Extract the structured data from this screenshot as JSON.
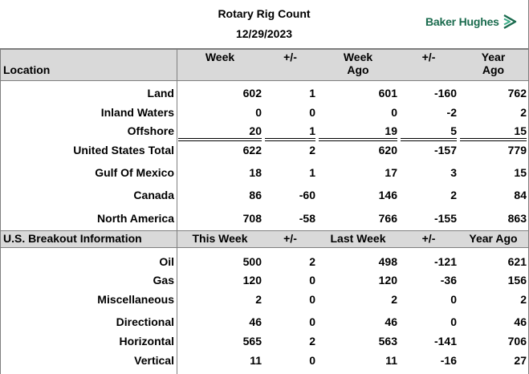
{
  "header": {
    "title": "Rotary Rig Count",
    "date": "12/29/2023",
    "logo_text": "Baker Hughes",
    "logo_color": "#1a6b4e",
    "logo_icon": "baker-hughes-chevron-icon"
  },
  "section1": {
    "headers": {
      "location": "Location",
      "week": "Week",
      "pm1": "+/-",
      "week_ago_1": "Week",
      "week_ago_2": "Ago",
      "pm2": "+/-",
      "year_ago_1": "Year",
      "year_ago_2": "Ago"
    },
    "rows": [
      {
        "label": "Land",
        "week": "602",
        "pm1": "1",
        "week_ago": "601",
        "pm2": "-160",
        "year_ago": "762"
      },
      {
        "label": "Inland Waters",
        "week": "0",
        "pm1": "0",
        "week_ago": "0",
        "pm2": "-2",
        "year_ago": "2"
      },
      {
        "label": "Offshore",
        "week": "20",
        "pm1": "1",
        "week_ago": "19",
        "pm2": "5",
        "year_ago": "15"
      },
      {
        "label": "United States Total",
        "week": "622",
        "pm1": "2",
        "week_ago": "620",
        "pm2": "-157",
        "year_ago": "779"
      },
      {
        "label": "Gulf Of Mexico",
        "week": "18",
        "pm1": "1",
        "week_ago": "17",
        "pm2": "3",
        "year_ago": "15"
      },
      {
        "label": "Canada",
        "week": "86",
        "pm1": "-60",
        "week_ago": "146",
        "pm2": "2",
        "year_ago": "84"
      },
      {
        "label": "North America",
        "week": "708",
        "pm1": "-58",
        "week_ago": "766",
        "pm2": "-155",
        "year_ago": "863"
      }
    ]
  },
  "section2": {
    "headers": {
      "location": "U.S. Breakout Information",
      "week": "This Week",
      "pm1": "+/-",
      "week_ago": "Last Week",
      "pm2": "+/-",
      "year_ago": "Year Ago"
    },
    "rows": [
      {
        "label": "Oil",
        "week": "500",
        "pm1": "2",
        "week_ago": "498",
        "pm2": "-121",
        "year_ago": "621"
      },
      {
        "label": "Gas",
        "week": "120",
        "pm1": "0",
        "week_ago": "120",
        "pm2": "-36",
        "year_ago": "156"
      },
      {
        "label": "Miscellaneous",
        "week": "2",
        "pm1": "0",
        "week_ago": "2",
        "pm2": "0",
        "year_ago": "2"
      },
      {
        "label": "Directional",
        "week": "46",
        "pm1": "0",
        "week_ago": "46",
        "pm2": "0",
        "year_ago": "46"
      },
      {
        "label": "Horizontal",
        "week": "565",
        "pm1": "2",
        "week_ago": "563",
        "pm2": "-141",
        "year_ago": "706"
      },
      {
        "label": "Vertical",
        "week": "11",
        "pm1": "0",
        "week_ago": "11",
        "pm2": "-16",
        "year_ago": "27"
      }
    ]
  }
}
